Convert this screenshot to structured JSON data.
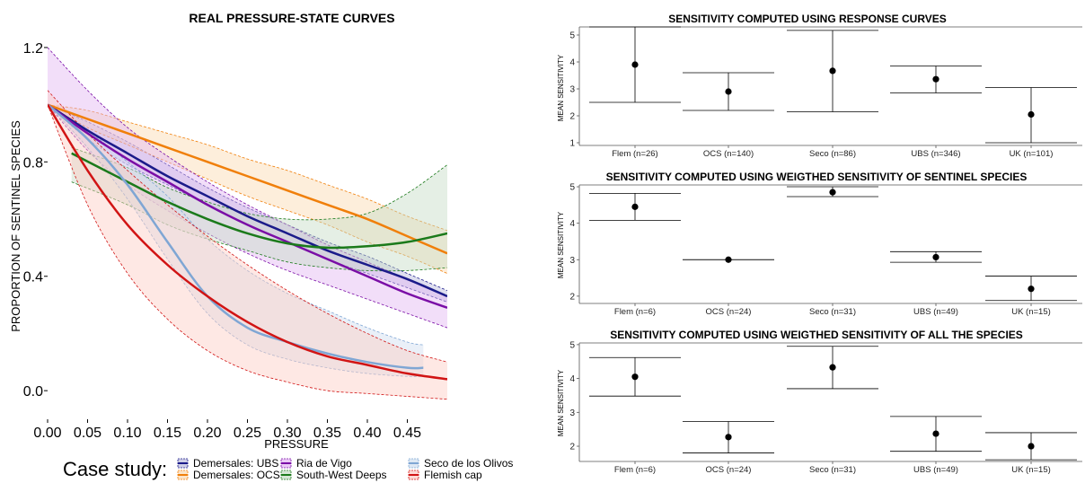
{
  "chart_data": [
    {
      "type": "line",
      "title": "REAL PRESSURE-STATE CURVES",
      "xlabel": "PRESSURE",
      "ylabel": "PROPORTION OF SENTINEL SPECIES",
      "xlim": [
        0,
        0.5
      ],
      "ylim": [
        -0.1,
        1.25
      ],
      "xticks": [
        "0.00",
        "0.05",
        "0.10",
        "0.15",
        "0.20",
        "0.25",
        "0.30",
        "0.35",
        "0.40",
        "0.45"
      ],
      "yticks": [
        "0.0",
        "0.4",
        "0.8",
        "1.2"
      ],
      "legend_title": "Case study:",
      "legend_position": "bottom",
      "series": [
        {
          "name": "Demersales: UBS",
          "color": "#1b1b8a",
          "fill": "#b9b9dc",
          "x": [
            0,
            0.05,
            0.1,
            0.15,
            0.2,
            0.25,
            0.3,
            0.35,
            0.4,
            0.45,
            0.5
          ],
          "y": [
            1.0,
            0.91,
            0.83,
            0.75,
            0.68,
            0.61,
            0.55,
            0.49,
            0.44,
            0.39,
            0.33
          ],
          "lower": [
            1.0,
            0.88,
            0.79,
            0.72,
            0.65,
            0.58,
            0.52,
            0.46,
            0.41,
            0.36,
            0.31
          ],
          "upper": [
            1.0,
            0.94,
            0.87,
            0.79,
            0.71,
            0.64,
            0.58,
            0.52,
            0.47,
            0.41,
            0.35
          ]
        },
        {
          "name": "Demersales: OCS",
          "color": "#f07f0a",
          "fill": "#fbd9b0",
          "x": [
            0,
            0.05,
            0.1,
            0.15,
            0.2,
            0.25,
            0.3,
            0.35,
            0.4,
            0.45,
            0.5
          ],
          "y": [
            1.0,
            0.95,
            0.9,
            0.85,
            0.8,
            0.75,
            0.7,
            0.65,
            0.6,
            0.54,
            0.48
          ],
          "lower": [
            1.0,
            0.92,
            0.86,
            0.8,
            0.74,
            0.68,
            0.63,
            0.58,
            0.52,
            0.47,
            0.41
          ],
          "upper": [
            1.0,
            0.98,
            0.94,
            0.9,
            0.86,
            0.81,
            0.77,
            0.72,
            0.67,
            0.61,
            0.56
          ]
        },
        {
          "name": "Ria de Vigo",
          "color": "#7a0ea6",
          "fill": "#e3b5f2",
          "x": [
            0,
            0.05,
            0.1,
            0.15,
            0.2,
            0.25,
            0.3,
            0.35,
            0.4,
            0.45,
            0.5
          ],
          "y": [
            1.0,
            0.9,
            0.81,
            0.73,
            0.65,
            0.58,
            0.52,
            0.46,
            0.4,
            0.34,
            0.29
          ],
          "lower": [
            1.0,
            0.84,
            0.72,
            0.63,
            0.55,
            0.48,
            0.42,
            0.37,
            0.32,
            0.27,
            0.22
          ],
          "upper": [
            1.2,
            1.05,
            0.92,
            0.82,
            0.73,
            0.65,
            0.58,
            0.51,
            0.45,
            0.39,
            0.33
          ]
        },
        {
          "name": "South-West Deeps",
          "color": "#1b7a1b",
          "fill": "#c6dcc6",
          "x": [
            0.03,
            0.1,
            0.15,
            0.2,
            0.25,
            0.3,
            0.35,
            0.4,
            0.45,
            0.5
          ],
          "y": [
            0.83,
            0.73,
            0.66,
            0.6,
            0.55,
            0.515,
            0.5,
            0.505,
            0.52,
            0.55
          ],
          "lower": [
            0.73,
            0.65,
            0.58,
            0.53,
            0.49,
            0.45,
            0.43,
            0.42,
            0.42,
            0.43
          ],
          "upper": [
            0.85,
            0.78,
            0.71,
            0.66,
            0.62,
            0.6,
            0.6,
            0.62,
            0.69,
            0.79
          ]
        },
        {
          "name": "Seco de los Olivos",
          "color": "#7fa6d4",
          "fill": "#d0def0",
          "x": [
            0,
            0.05,
            0.1,
            0.15,
            0.2,
            0.25,
            0.3,
            0.35,
            0.4,
            0.45,
            0.47
          ],
          "y": [
            1.0,
            0.88,
            0.72,
            0.52,
            0.33,
            0.22,
            0.17,
            0.13,
            0.1,
            0.08,
            0.08
          ],
          "lower": [
            1.0,
            0.85,
            0.67,
            0.46,
            0.27,
            0.16,
            0.11,
            0.08,
            0.06,
            0.05,
            0.05
          ],
          "upper": [
            1.0,
            0.91,
            0.8,
            0.68,
            0.53,
            0.42,
            0.34,
            0.28,
            0.22,
            0.17,
            0.16
          ]
        },
        {
          "name": "Flemish cap",
          "color": "#d11414",
          "fill": "#fccbc3",
          "x": [
            0,
            0.05,
            0.1,
            0.15,
            0.2,
            0.25,
            0.3,
            0.35,
            0.4,
            0.45,
            0.5
          ],
          "y": [
            1.0,
            0.77,
            0.58,
            0.44,
            0.33,
            0.24,
            0.17,
            0.12,
            0.09,
            0.06,
            0.04
          ],
          "lower": [
            1.0,
            0.65,
            0.41,
            0.25,
            0.14,
            0.07,
            0.03,
            0.0,
            -0.01,
            -0.02,
            -0.03
          ],
          "upper": [
            1.05,
            0.9,
            0.77,
            0.65,
            0.54,
            0.44,
            0.35,
            0.27,
            0.2,
            0.14,
            0.1
          ]
        }
      ]
    },
    {
      "type": "errorbar",
      "title": "SENSITIVITY COMPUTED USING RESPONSE CURVES",
      "ylabel": "MEAN SENSITIVITY",
      "ylim": [
        0.9,
        5.3
      ],
      "yticks": [
        1,
        2,
        3,
        4,
        5
      ],
      "categories": [
        "Flem (n=26)",
        "OCS (n=140)",
        "Seco (n=86)",
        "UBS (n=346)",
        "UK (n=101)"
      ],
      "mean": [
        3.9,
        2.9,
        3.67,
        3.36,
        2.05
      ],
      "lower": [
        2.5,
        2.2,
        2.15,
        2.85,
        1.0
      ],
      "upper": [
        5.3,
        3.6,
        5.17,
        3.85,
        3.05
      ]
    },
    {
      "type": "errorbar",
      "title": "SENSITIVITY COMPUTED USING WEIGTHED SENSITIVITY OF SENTINEL SPECIES",
      "ylabel": "MEAN SENSITIVITY",
      "ylim": [
        1.8,
        5.05
      ],
      "yticks": [
        2,
        3,
        4,
        5
      ],
      "categories": [
        "Flem (n=6)",
        "OCS (n=24)",
        "Seco (n=31)",
        "UBS (n=49)",
        "UK (n=15)"
      ],
      "mean": [
        4.45,
        3.0,
        4.85,
        3.07,
        2.2
      ],
      "lower": [
        4.08,
        3.0,
        4.73,
        2.93,
        1.88
      ],
      "upper": [
        4.82,
        3.0,
        5.0,
        3.22,
        2.55
      ]
    },
    {
      "type": "errorbar",
      "title": "SENSITIVITY COMPUTED USING WEIGTHED SENSITIVITY OF ALL THE SPECIES",
      "ylabel": "MEAN SENSITIVITY",
      "ylim": [
        1.55,
        5.05
      ],
      "yticks": [
        2,
        3,
        4,
        5
      ],
      "categories": [
        "Flem (n=6)",
        "OCS (n=24)",
        "Seco (n=31)",
        "UBS (n=49)",
        "UK (n=15)"
      ],
      "mean": [
        4.05,
        2.27,
        4.33,
        2.37,
        2.0
      ],
      "lower": [
        3.48,
        1.8,
        3.7,
        1.85,
        1.6
      ],
      "upper": [
        4.62,
        2.73,
        4.95,
        2.88,
        2.4
      ]
    }
  ]
}
